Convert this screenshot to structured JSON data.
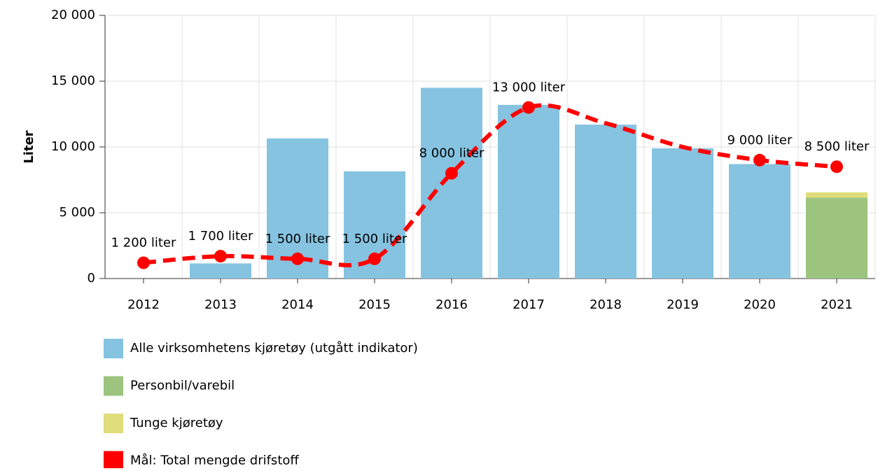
{
  "chart_data": {
    "type": "bar",
    "stacked": true,
    "y_label": "Liter",
    "categories": [
      "2012",
      "2013",
      "2014",
      "2015",
      "2016",
      "2017",
      "2018",
      "2019",
      "2020",
      "2021"
    ],
    "series": [
      {
        "name": "Alle virksomhetens kjøretøy (utgått indikator)",
        "color": "#86c3e1",
        "values": [
          null,
          1150,
          10650,
          8150,
          14500,
          13200,
          11700,
          9900,
          8700,
          null
        ]
      },
      {
        "name": "Personbil/varebil",
        "color": "#9cc47e",
        "values": [
          null,
          null,
          null,
          null,
          null,
          null,
          null,
          null,
          null,
          6150
        ]
      },
      {
        "name": "Tunge kjøretøy",
        "color": "#dfdc7a",
        "values": [
          null,
          null,
          null,
          null,
          null,
          null,
          null,
          null,
          null,
          400
        ]
      },
      {
        "name": "Mål: Total mengde drifstoff",
        "color": "#ff0000",
        "type": "line",
        "dashed": true,
        "smooth": true,
        "values": [
          1200,
          1700,
          1500,
          1500,
          8000,
          13000,
          11800,
          10000,
          9000,
          8500
        ],
        "value_labels": [
          "1 200 liter",
          "1 700 liter",
          "1 500 liter",
          "1 500 liter",
          "8 000 liter",
          "13 000 liter",
          null,
          null,
          "9 000 liter",
          "8 500 liter"
        ]
      }
    ],
    "ylim": [
      0,
      20000
    ],
    "yticks": [
      0,
      {
        "value": 5000,
        "label": "5 000"
      },
      {
        "value": 10000,
        "label": "10 000"
      },
      {
        "value": 15000,
        "label": "15 000"
      },
      {
        "value": 20000,
        "label": "20 000"
      }
    ],
    "grid": true,
    "legend": "bottom"
  }
}
